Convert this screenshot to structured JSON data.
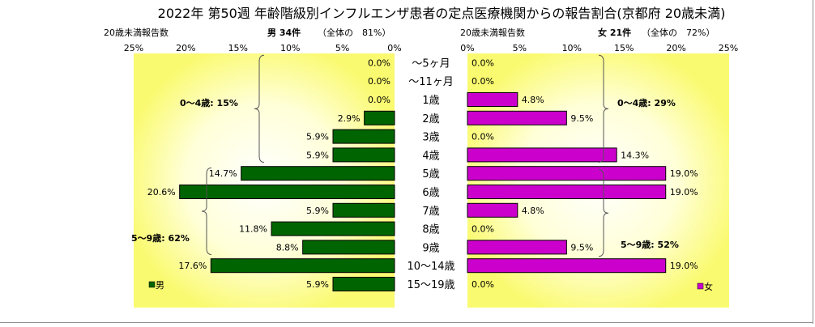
{
  "chart_data": {
    "type": "bar",
    "title": "2022年 第50週 年齢階級別インフルエンザ患者の定点医療機関からの報告割合(京都府 20歳未満)",
    "categories": [
      "～5ヶ月",
      "～11ヶ月",
      "1歳",
      "2歳",
      "3歳",
      "4歳",
      "5歳",
      "6歳",
      "7歳",
      "8歳",
      "9歳",
      "10～14歳",
      "15～19歳"
    ],
    "axis_label": "20歳未満報告数",
    "xlim": [
      0,
      25
    ],
    "x_ticks": [
      "25%",
      "20%",
      "15%",
      "10%",
      "5%",
      "0%"
    ],
    "x_ticks_right": [
      "0%",
      "5%",
      "10%",
      "15%",
      "20%",
      "25%"
    ],
    "panels": [
      {
        "name": "男",
        "header_name": "男 34件",
        "header_share": "（全体の　81%）",
        "color": "#006400",
        "values": [
          0.0,
          0.0,
          0.0,
          2.9,
          5.9,
          5.9,
          14.7,
          20.6,
          5.9,
          11.8,
          8.8,
          17.6,
          5.9
        ],
        "labels": [
          "0.0%",
          "0.0%",
          "0.0%",
          "2.9%",
          "5.9%",
          "5.9%",
          "14.7%",
          "20.6%",
          "5.9%",
          "11.8%",
          "8.8%",
          "17.6%",
          "5.9%"
        ],
        "group_labels": [
          "0～4歳: 15%",
          "5～9歳: 62%"
        ]
      },
      {
        "name": "女",
        "header_name": "女 21件",
        "header_share": "（全体の　72%）",
        "color": "#cc00cc",
        "values": [
          0.0,
          0.0,
          4.8,
          9.5,
          0.0,
          14.3,
          19.0,
          19.0,
          4.8,
          0.0,
          9.5,
          19.0,
          0.0
        ],
        "labels": [
          "0.0%",
          "0.0%",
          "4.8%",
          "9.5%",
          "0.0%",
          "14.3%",
          "19.0%",
          "19.0%",
          "4.8%",
          "0.0%",
          "9.5%",
          "19.0%",
          "0.0%"
        ],
        "group_labels": [
          "0～4歳: 29%",
          "5～9歳: 52%"
        ]
      }
    ]
  }
}
